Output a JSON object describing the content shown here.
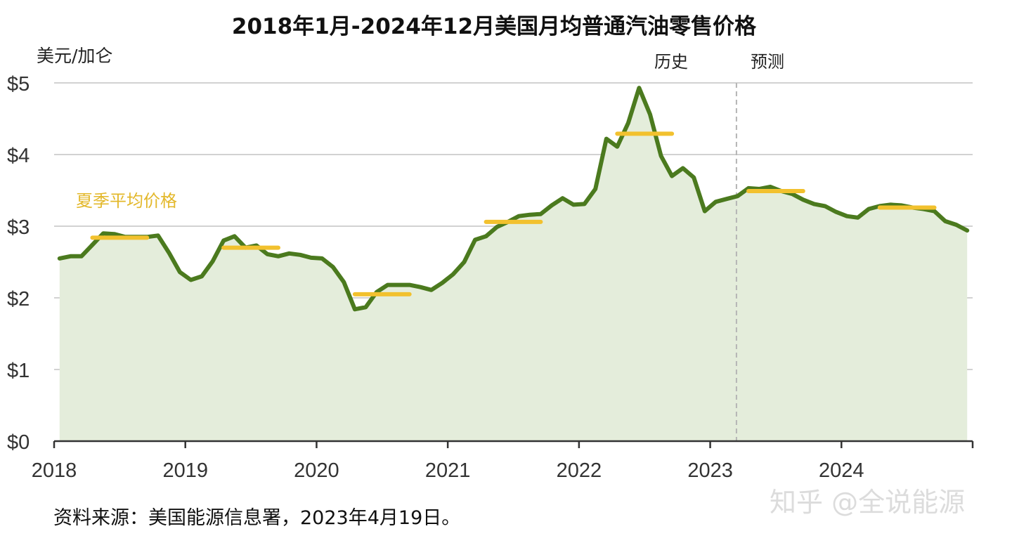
{
  "chart_data": {
    "type": "line",
    "title": "2018年1月-2024年12月美国月均普通汽油零售价格",
    "ylabel": "美元/加仑",
    "ylim": [
      0,
      5
    ],
    "yticks": [
      "$0",
      "$1",
      "$2",
      "$3",
      "$4",
      "$5"
    ],
    "xticks": [
      "2018",
      "2019",
      "2020",
      "2021",
      "2022",
      "2023",
      "2024"
    ],
    "x_start": "2018-01",
    "x_end": "2024-12",
    "forecast_divider": "2023-03",
    "period_labels": [
      "历史",
      "预测"
    ],
    "summer_avg_label": "夏季平均价格",
    "series": [
      {
        "name": "",
        "color": "#4b7a1e",
        "values": [
          2.55,
          2.58,
          2.58,
          2.74,
          2.9,
          2.89,
          2.85,
          2.85,
          2.85,
          2.87,
          2.63,
          2.36,
          2.25,
          2.3,
          2.51,
          2.8,
          2.86,
          2.7,
          2.73,
          2.61,
          2.58,
          2.62,
          2.6,
          2.56,
          2.55,
          2.43,
          2.22,
          1.84,
          1.87,
          2.08,
          2.18,
          2.18,
          2.18,
          2.15,
          2.11,
          2.21,
          2.33,
          2.5,
          2.81,
          2.86,
          2.99,
          3.06,
          3.14,
          3.16,
          3.17,
          3.29,
          3.39,
          3.3,
          3.31,
          3.52,
          4.22,
          4.11,
          4.44,
          4.93,
          4.56,
          3.98,
          3.7,
          3.81,
          3.68,
          3.21,
          3.34,
          3.38,
          3.42,
          3.53,
          3.52,
          3.55,
          3.49,
          3.45,
          3.37,
          3.31,
          3.28,
          3.2,
          3.14,
          3.12,
          3.24,
          3.28,
          3.3,
          3.29,
          3.26,
          3.24,
          3.21,
          3.07,
          3.02,
          2.94
        ]
      }
    ],
    "summer_averages": [
      {
        "year": "2018",
        "value": 2.84
      },
      {
        "year": "2019",
        "value": 2.7
      },
      {
        "year": "2020",
        "value": 2.05
      },
      {
        "year": "2021",
        "value": 3.06
      },
      {
        "year": "2022",
        "value": 4.29
      },
      {
        "year": "2023",
        "value": 3.49
      },
      {
        "year": "2024",
        "value": 3.26
      }
    ],
    "summer_avg_color": "#f2c12e",
    "area_fill": "#e4eddb",
    "grid": true
  },
  "source": "资料来源：美国能源信息署，2023年4月19日。",
  "watermark": "知乎 @全说能源"
}
